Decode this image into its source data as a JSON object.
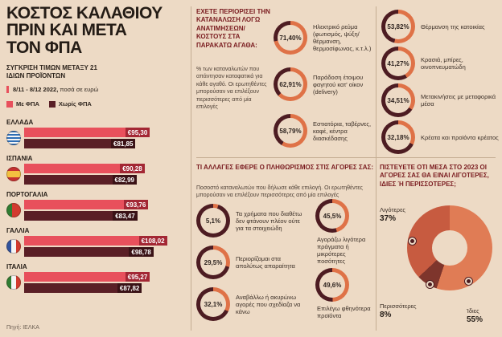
{
  "colors": {
    "background": "#eddac5",
    "accent_red": "#e8505c",
    "dark_maroon": "#5a1f26",
    "with_vat_bar": "#e8505c",
    "with_vat_chip": "#a32734",
    "without_vat_bar": "#5a1f26",
    "without_vat_chip": "#3a1216",
    "donut_fill": "#df7247",
    "donut_track": "#4d1c22",
    "section_title": "#7a1c20"
  },
  "left": {
    "title": "ΚΟΣΤΟΣ ΚΑΛΑΘΙΟΥ\nΠΡΙΝ ΚΑΙ ΜΕΤΑ\nΤΟΝ ΦΠΑ",
    "subtitle": "ΣΥΓΚΡΙΣΗ ΤΙΜΩΝ ΜΕΤΑΞΥ 21 ΙΔΙΩΝ ΠΡΟΪΟΝΤΩΝ",
    "date_range": "8/11 - 8/12 2022,",
    "unit_note": "ποσά σε ευρώ",
    "legend": [
      {
        "label": "Με ΦΠΑ",
        "color": "#e8505c"
      },
      {
        "label": "Χωρίς ΦΠΑ",
        "color": "#5a1f26"
      }
    ],
    "countries": [
      {
        "name": "ΕΛΛΑΔΑ",
        "flag": "greece-flag-icon",
        "with_vat": 95.3,
        "with_vat_label": "€95,30",
        "without_vat": 81.85,
        "without_vat_label": "€81,85"
      },
      {
        "name": "ΙΣΠΑΝΙΑ",
        "flag": "spain-flag-icon",
        "with_vat": 90.28,
        "with_vat_label": "€90,28",
        "without_vat": 82.99,
        "without_vat_label": "€82,99"
      },
      {
        "name": "ΠΟΡΤΟΓΑΛΙΑ",
        "flag": "portugal-flag-icon",
        "with_vat": 93.76,
        "with_vat_label": "€93,76",
        "without_vat": 83.47,
        "without_vat_label": "€83,47"
      },
      {
        "name": "ΓΑΛΛΙΑ",
        "flag": "france-flag-icon",
        "with_vat": 108.02,
        "with_vat_label": "€108,02",
        "without_vat": 98.78,
        "without_vat_label": "€98,78"
      },
      {
        "name": "ΙΤΑΛΙΑ",
        "flag": "italy-flag-icon",
        "with_vat": 95.27,
        "with_vat_label": "€95,27",
        "without_vat": 87.82,
        "without_vat_label": "€87,82"
      }
    ],
    "source": "Πηγή: ΙΕΛΚΑ"
  },
  "consumption": {
    "title": "ΕΧΕΤΕ ΠΕΡΙΟΡΙΣΕΙ ΤΗΝ ΚΑΤΑΝΑΛΩΣΗ ΛΟΓΩ ΑΝΑΤΙΜΗΣΕΩΝ/ΚΟΣΤΟΥΣ ΣΤΑ ΠΑΡΑΚΑΤΩ ΑΓΑΘΑ:",
    "note": "% των καταναλωτών που απάντησαν καταφατικά για κάθε αγαθό. Οι ερωτηθέντες μπορούσαν να επιλέξουν περισσότερες από μία επιλογές",
    "items": [
      {
        "pct": "71,40%",
        "value": 71.4,
        "label": "Ηλεκτρικό ρεύμα (φωτισμός, ψύξη/θέρμανση, θερμοσίφωνας, κ.τ.λ.)"
      },
      {
        "pct": "62,91%",
        "value": 62.91,
        "label": "Παράδοση έτοιμου φαγητού κατ' οίκον (delivery)"
      },
      {
        "pct": "58,79%",
        "value": 58.79,
        "label": "Εστιατόρια, ταβέρνες, καφέ, κέντρα διασκέδασης"
      },
      {
        "pct": "53,82%",
        "value": 53.82,
        "label": "Θέρμανση της κατοικίας"
      },
      {
        "pct": "41,27%",
        "value": 41.27,
        "label": "Κρασιά, μπίρες, οινοπνευματώδη"
      },
      {
        "pct": "34,51%",
        "value": 34.51,
        "label": "Μετακινήσεις με μεταφορικά μέσα"
      },
      {
        "pct": "32,18%",
        "value": 32.18,
        "label": "Κρέατα και προϊόντα κρέατος"
      }
    ]
  },
  "inflation": {
    "title": "ΤΙ ΑΛΛΑΓΕΣ ΕΦΕΡΕ Ο ΠΛΗΘΩΡΙΣΜΟΣ ΣΤΙΣ ΑΓΟΡΕΣ ΣΑΣ:",
    "note": "Ποσοστό καταναλωτών που δήλωσε κάθε επιλογή. Οι ερωτηθέντες μπορούσαν να επιλέξουν περισσότερες από μία επιλογές",
    "items": [
      {
        "pct": "5,1%",
        "value": 5.1,
        "label": "Τα χρήματα που διαθέτω δεν φτάνουν πλέον ούτε για τα στοιχειώδη"
      },
      {
        "pct": "29,5%",
        "value": 29.5,
        "label": "Περιορίζομαι στα απολύτως απαραίτητα"
      },
      {
        "pct": "32,1%",
        "value": 32.1,
        "label": "Αναβάλλω ή ακυρώνω αγορές που σχεδίαζα να κάνω"
      },
      {
        "pct": "45,5%",
        "value": 45.5,
        "label": "Αγοράζω λιγότερα πράγματα ή μικρότερες ποσότητες"
      },
      {
        "pct": "49,6%",
        "value": 49.6,
        "label": "Επιλέγω φθηνότερα προϊόντα"
      }
    ]
  },
  "outlook_2023": {
    "title": "ΠΙΣΤΕΥΕΤΕ ΟΤΙ ΜΕΣΑ ΣΤΟ 2023 ΟΙ ΑΓΟΡΕΣ ΣΑΣ ΘΑ ΕΙΝΑΙ ΛΙΓΟΤΕΡΕΣ, ΙΔΙΕΣ Ή ΠΕΡΙΣΣΟΤΕΡΕΣ;",
    "segments": [
      {
        "label": "Ίδιες",
        "pct": "55%",
        "value": 55,
        "color": "#e07c55"
      },
      {
        "label": "Περισσότερες",
        "pct": "8%",
        "value": 8,
        "color": "#7e352c"
      },
      {
        "label": "Λιγότερες",
        "pct": "37%",
        "value": 37,
        "color": "#c75b40"
      }
    ]
  },
  "chart_data": [
    {
      "type": "bar",
      "title": "ΚΟΣΤΟΣ ΚΑΛΑΘΙΟΥ ΠΡΙΝ ΚΑΙ ΜΕΤΑ ΤΟΝ ΦΠΑ",
      "subtitle": "ΣΥΓΚΡΙΣΗ ΤΙΜΩΝ ΜΕΤΑΞΥ 21 ΙΔΙΩΝ ΠΡΟΪΟΝΤΩΝ",
      "note": "8/11 - 8/12 2022, ποσά σε ευρώ",
      "categories": [
        "ΕΛΛΑΔΑ",
        "ΙΣΠΑΝΙΑ",
        "ΠΟΡΤΟΓΑΛΙΑ",
        "ΓΑΛΛΙΑ",
        "ΙΤΑΛΙΑ"
      ],
      "series": [
        {
          "name": "Με ΦΠΑ",
          "values": [
            95.3,
            90.28,
            93.76,
            108.02,
            95.27
          ]
        },
        {
          "name": "Χωρίς ΦΠΑ",
          "values": [
            81.85,
            82.99,
            83.47,
            98.78,
            87.82
          ]
        }
      ],
      "unit": "ευρώ",
      "legend_position": "top",
      "source": "Πηγή: ΙΕΛΚΑ"
    },
    {
      "type": "pie",
      "title": "ΕΧΕΤΕ ΠΕΡΙΟΡΙΣΕΙ ΤΗΝ ΚΑΤΑΝΑΛΩΣΗ ΛΟΓΩ ΑΝΑΤΙΜΗΣΕΩΝ/ΚΟΣΤΟΥΣ ΣΤΑ ΠΑΡΑΚΑΤΩ ΑΓΑΘΑ:",
      "categories": [
        "Ηλεκτρικό ρεύμα (φωτισμός, ψύξη/θέρμανση, θερμοσίφωνας, κ.τ.λ.)",
        "Παράδοση έτοιμου φαγητού κατ' οίκον (delivery)",
        "Εστιατόρια, ταβέρνες, καφέ, κέντρα διασκέδασης",
        "Θέρμανση της κατοικίας",
        "Κρασιά, μπίρες, οινοπνευματώδη",
        "Μετακινήσεις με μεταφορικά μέσα",
        "Κρέατα και προϊόντα κρέατος"
      ],
      "values": [
        71.4,
        62.91,
        58.79,
        53.82,
        41.27,
        34.51,
        32.18
      ]
    },
    {
      "type": "pie",
      "title": "ΤΙ ΑΛΛΑΓΕΣ ΕΦΕΡΕ Ο ΠΛΗΘΩΡΙΣΜΟΣ ΣΤΙΣ ΑΓΟΡΕΣ ΣΑΣ:",
      "categories": [
        "Τα χρήματα που διαθέτω δεν φτάνουν πλέον ούτε για τα στοιχειώδη",
        "Περιορίζομαι στα απολύτως απαραίτητα",
        "Αναβάλλω ή ακυρώνω αγορές που σχεδίαζα να κάνω",
        "Αγοράζω λιγότερα πράγματα ή μικρότερες ποσότητες",
        "Επιλέγω φθηνότερα προϊόντα"
      ],
      "values": [
        5.1,
        29.5,
        32.1,
        45.5,
        49.6
      ]
    },
    {
      "type": "pie",
      "title": "ΠΙΣΤΕΥΕΤΕ ΟΤΙ ΜΕΣΑ ΣΤΟ 2023 ΟΙ ΑΓΟΡΕΣ ΣΑΣ ΘΑ ΕΙΝΑΙ ΛΙΓΟΤΕΡΕΣ, ΙΔΙΕΣ Ή ΠΕΡΙΣΣΟΤΕΡΕΣ;",
      "categories": [
        "Λιγότερες",
        "Ίδιες",
        "Περισσότερες"
      ],
      "values": [
        37,
        55,
        8
      ]
    }
  ]
}
